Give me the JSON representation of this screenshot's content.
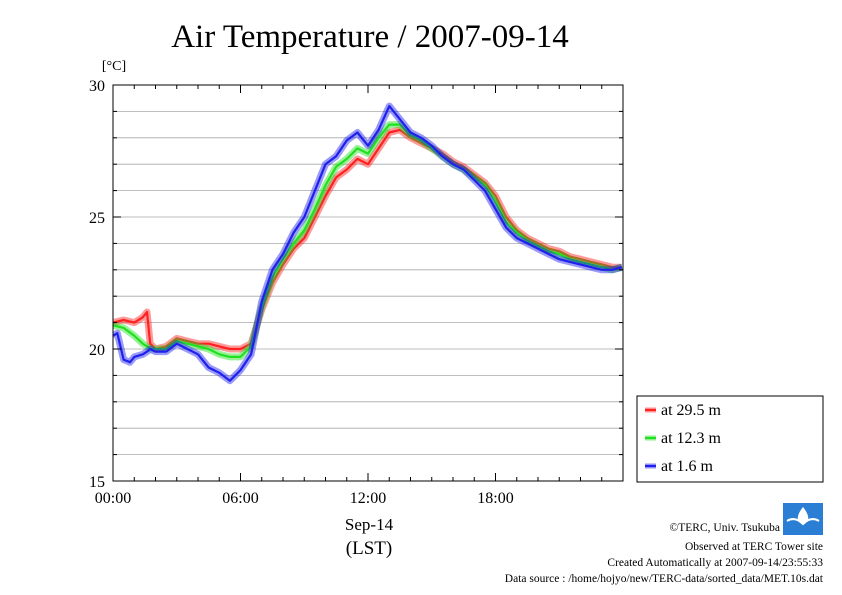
{
  "chart_data": {
    "type": "line",
    "title": "Air Temperature / 2007-09-14",
    "ylabel": "[°C]",
    "xlabel_date": "Sep-14",
    "xlabel_tz": "(LST)",
    "ylim": [
      15,
      30
    ],
    "xlim": [
      0,
      24
    ],
    "y_ticks": [
      "15",
      "20",
      "25",
      "30"
    ],
    "x_ticks": [
      "00:00",
      "06:00",
      "12:00",
      "18:00"
    ],
    "grid": "horizontal every 1 °C",
    "legend_position": "right, lower",
    "series": [
      {
        "name": "at 29.5 m",
        "color": "#ff2020",
        "x": [
          0,
          0.5,
          1.0,
          1.4,
          1.6,
          1.75,
          2.0,
          2.5,
          3.0,
          3.5,
          4.0,
          4.5,
          5.0,
          5.5,
          6.0,
          6.5,
          7.0,
          7.5,
          8.0,
          8.5,
          9.0,
          9.5,
          10.0,
          10.5,
          11.0,
          11.5,
          12.0,
          12.5,
          13.0,
          13.5,
          14.0,
          14.5,
          15.0,
          15.5,
          16.0,
          16.5,
          17.0,
          17.5,
          18.0,
          18.5,
          19.0,
          19.5,
          20.0,
          20.5,
          21.0,
          21.5,
          22.0,
          22.5,
          23.0,
          23.5,
          23.95
        ],
        "values": [
          21.0,
          21.1,
          21.0,
          21.2,
          21.4,
          20.2,
          20.0,
          20.1,
          20.4,
          20.3,
          20.2,
          20.2,
          20.1,
          20.0,
          20.0,
          20.2,
          21.5,
          22.5,
          23.2,
          23.8,
          24.2,
          25.0,
          25.8,
          26.5,
          26.8,
          27.2,
          27.0,
          27.6,
          28.2,
          28.3,
          28.0,
          27.8,
          27.6,
          27.4,
          27.1,
          26.9,
          26.6,
          26.3,
          25.8,
          25.0,
          24.5,
          24.2,
          24.0,
          23.8,
          23.7,
          23.5,
          23.4,
          23.3,
          23.2,
          23.1,
          23.1
        ]
      },
      {
        "name": "at 12.3 m",
        "color": "#20e020",
        "x": [
          0,
          0.5,
          1.0,
          1.4,
          1.6,
          1.75,
          2.0,
          2.5,
          3.0,
          3.5,
          4.0,
          4.5,
          5.0,
          5.5,
          6.0,
          6.5,
          7.0,
          7.5,
          8.0,
          8.5,
          9.0,
          9.5,
          10.0,
          10.5,
          11.0,
          11.5,
          12.0,
          12.5,
          13.0,
          13.5,
          14.0,
          14.5,
          15.0,
          15.5,
          16.0,
          16.5,
          17.0,
          17.5,
          18.0,
          18.5,
          19.0,
          19.5,
          20.0,
          20.5,
          21.0,
          21.5,
          22.0,
          22.5,
          23.0,
          23.5,
          23.95
        ],
        "values": [
          20.9,
          20.8,
          20.5,
          20.2,
          20.1,
          20.0,
          20.0,
          20.0,
          20.3,
          20.2,
          20.1,
          20.0,
          19.8,
          19.7,
          19.7,
          20.1,
          21.6,
          22.7,
          23.4,
          24.0,
          24.5,
          25.3,
          26.2,
          26.9,
          27.2,
          27.6,
          27.4,
          28.0,
          28.5,
          28.5,
          28.1,
          27.9,
          27.6,
          27.3,
          27.0,
          26.8,
          26.5,
          26.2,
          25.6,
          24.8,
          24.4,
          24.1,
          23.9,
          23.7,
          23.6,
          23.4,
          23.3,
          23.2,
          23.1,
          23.0,
          23.1
        ]
      },
      {
        "name": "at 1.6 m",
        "color": "#2020ee",
        "x": [
          0,
          0.2,
          0.5,
          0.8,
          1.0,
          1.4,
          1.6,
          1.75,
          2.0,
          2.5,
          3.0,
          3.5,
          4.0,
          4.5,
          5.0,
          5.5,
          6.0,
          6.5,
          7.0,
          7.5,
          8.0,
          8.5,
          9.0,
          9.5,
          10.0,
          10.5,
          11.0,
          11.5,
          12.0,
          12.5,
          13.0,
          13.5,
          14.0,
          14.5,
          15.0,
          15.5,
          16.0,
          16.5,
          17.0,
          17.5,
          18.0,
          18.5,
          19.0,
          19.5,
          20.0,
          20.5,
          21.0,
          21.5,
          22.0,
          22.5,
          23.0,
          23.5,
          23.95
        ],
        "values": [
          20.5,
          20.6,
          19.6,
          19.5,
          19.7,
          19.8,
          19.9,
          20.0,
          19.9,
          19.9,
          20.2,
          20.0,
          19.8,
          19.3,
          19.1,
          18.8,
          19.2,
          19.8,
          21.8,
          23.0,
          23.6,
          24.4,
          25.0,
          26.0,
          27.0,
          27.3,
          27.9,
          28.2,
          27.7,
          28.3,
          29.2,
          28.7,
          28.2,
          28.0,
          27.7,
          27.3,
          27.0,
          26.8,
          26.4,
          26.0,
          25.3,
          24.6,
          24.2,
          24.0,
          23.8,
          23.6,
          23.4,
          23.3,
          23.2,
          23.1,
          23.0,
          23.0,
          23.1
        ]
      }
    ]
  },
  "credits": {
    "copyright": "©TERC, Univ. Tsukuba",
    "site": "Observed at TERC Tower site",
    "created": "Created Automatically at 2007-09-14/23:55:33",
    "source": "Data source : /home/hojyo/new/TERC-data/sorted_data/MET.10s.dat",
    "logo_text": "TERC"
  }
}
